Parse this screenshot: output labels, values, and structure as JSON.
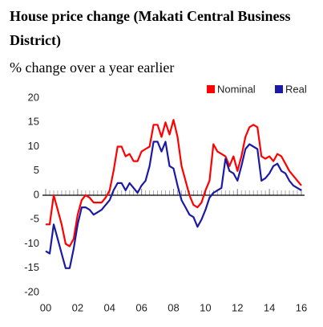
{
  "chart_data": {
    "type": "line",
    "title": "House price change (Makati Central Business District)",
    "subtitle": "% change over a year earlier",
    "x": [
      2000,
      2000.25,
      2000.5,
      2000.75,
      2001,
      2001.25,
      2001.5,
      2001.75,
      2002,
      2002.25,
      2002.5,
      2002.75,
      2003,
      2003.25,
      2003.5,
      2003.75,
      2004,
      2004.25,
      2004.5,
      2004.75,
      2005,
      2005.25,
      2005.5,
      2005.75,
      2006,
      2006.25,
      2006.5,
      2006.75,
      2007,
      2007.25,
      2007.5,
      2007.75,
      2008,
      2008.25,
      2008.5,
      2008.75,
      2009,
      2009.25,
      2009.5,
      2009.75,
      2010,
      2010.25,
      2010.5,
      2010.75,
      2011,
      2011.25,
      2011.5,
      2011.75,
      2012,
      2012.25,
      2012.5,
      2012.75,
      2013,
      2013.25,
      2013.5,
      2013.75,
      2014,
      2014.25,
      2014.5,
      2014.75,
      2015,
      2015.25,
      2015.5,
      2015.75,
      2016
    ],
    "series": [
      {
        "name": "Nominal",
        "color": "#ff0000",
        "values": [
          -6,
          -6,
          0,
          -3,
          -6,
          -10,
          -10.5,
          -9,
          -4,
          -1,
          0,
          -0.5,
          -1.5,
          -1.5,
          -1.5,
          -0.5,
          1,
          5,
          10,
          10,
          8,
          8.5,
          7,
          7,
          9,
          9.5,
          10,
          14.5,
          14.5,
          12,
          15,
          12.5,
          15.5,
          12,
          6,
          3,
          0,
          -2,
          -2.5,
          -1.5,
          1,
          3,
          10.5,
          9,
          8.5,
          8,
          6,
          8,
          5,
          8,
          12,
          14,
          14.5,
          14,
          8,
          7.5,
          8,
          7,
          8.5,
          8,
          6.5,
          5,
          4,
          3,
          2
        ]
      },
      {
        "name": "Real",
        "color": "#1a1aa6",
        "values": [
          -11.5,
          -12,
          -6,
          -9,
          -12,
          -15,
          -15,
          -11,
          -6,
          -2.5,
          -2.5,
          -3,
          -4,
          -3.5,
          -3,
          -2,
          -1,
          1,
          2.5,
          2.5,
          1,
          2.5,
          1.5,
          0.5,
          2,
          3,
          6,
          11,
          11,
          9,
          11,
          6,
          5.5,
          2,
          -1,
          -2.5,
          -4,
          -4.5,
          -6.5,
          -5,
          -3,
          -0.5,
          0.5,
          1,
          1.5,
          7.5,
          5,
          4.5,
          3,
          6,
          9.5,
          10.5,
          10,
          9.5,
          3,
          3.5,
          4.5,
          6,
          6.5,
          5,
          4.5,
          3,
          2,
          1.5,
          1
        ]
      }
    ],
    "xlim": [
      2000,
      2016
    ],
    "xticks": [
      {
        "value": 2000,
        "label": "00"
      },
      {
        "value": 2002,
        "label": "02"
      },
      {
        "value": 2004,
        "label": "04"
      },
      {
        "value": 2006,
        "label": "06"
      },
      {
        "value": 2008,
        "label": "08"
      },
      {
        "value": 2010,
        "label": "10"
      },
      {
        "value": 2012,
        "label": "12"
      },
      {
        "value": 2014,
        "label": "14"
      },
      {
        "value": 2016,
        "label": "16"
      }
    ],
    "ylim": [
      -20,
      20
    ],
    "yticks": [
      -20,
      -15,
      -10,
      -5,
      0,
      5,
      10,
      15,
      20
    ],
    "grid": false,
    "legend": "top-right"
  }
}
